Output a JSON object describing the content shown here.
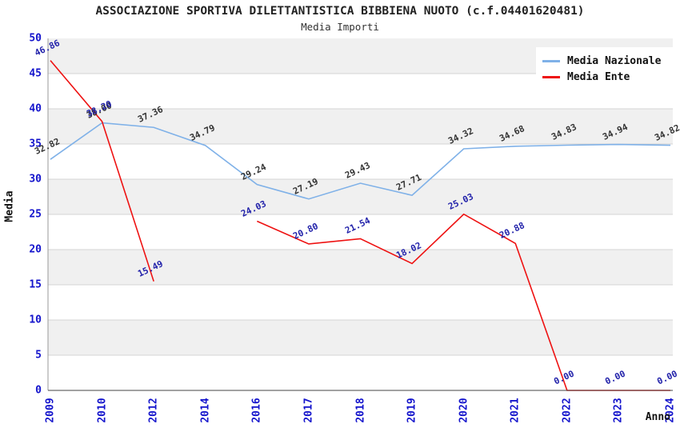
{
  "header": {
    "title": "ASSOCIAZIONE SPORTIVA DILETTANTISTICA BIBBIENA NUOTO (c.f.04401620481)",
    "subtitle": "Media Importi"
  },
  "chart_data": {
    "type": "line",
    "title": "ASSOCIAZIONE SPORTIVA DILETTANTISTICA BIBBIENA NUOTO (c.f.04401620481)",
    "subtitle": "Media Importi",
    "xlabel": "Anno",
    "ylabel": "Media",
    "ylim": [
      0,
      50
    ],
    "ytick_step": 5,
    "grid": true,
    "legend_position": "top-right",
    "categories": [
      "2009",
      "2010",
      "2012",
      "2014",
      "2016",
      "2017",
      "2018",
      "2019",
      "2020",
      "2021",
      "2022",
      "2023",
      "2024"
    ],
    "series": [
      {
        "name": "Media Nazionale",
        "color": "#7fb1e8",
        "label_color": "#333333",
        "values": [
          32.82,
          38.0,
          37.36,
          34.79,
          29.24,
          27.19,
          29.43,
          27.71,
          34.32,
          34.68,
          34.83,
          34.94,
          34.82
        ]
      },
      {
        "name": "Media Ente",
        "color": "#ee1111",
        "label_color": "#2222aa",
        "values": [
          46.86,
          38.2,
          15.49,
          null,
          24.03,
          20.8,
          21.54,
          18.02,
          25.03,
          20.88,
          0.0,
          0.0,
          0.0
        ]
      }
    ],
    "colors": {
      "tick_label": "#1414cc",
      "band_light": "#ffffff",
      "band_dark": "#f0f0f0",
      "gridline": "#d4d4d4",
      "axis_left": "#9a9a9a",
      "axis_bottom": "#444444"
    }
  }
}
